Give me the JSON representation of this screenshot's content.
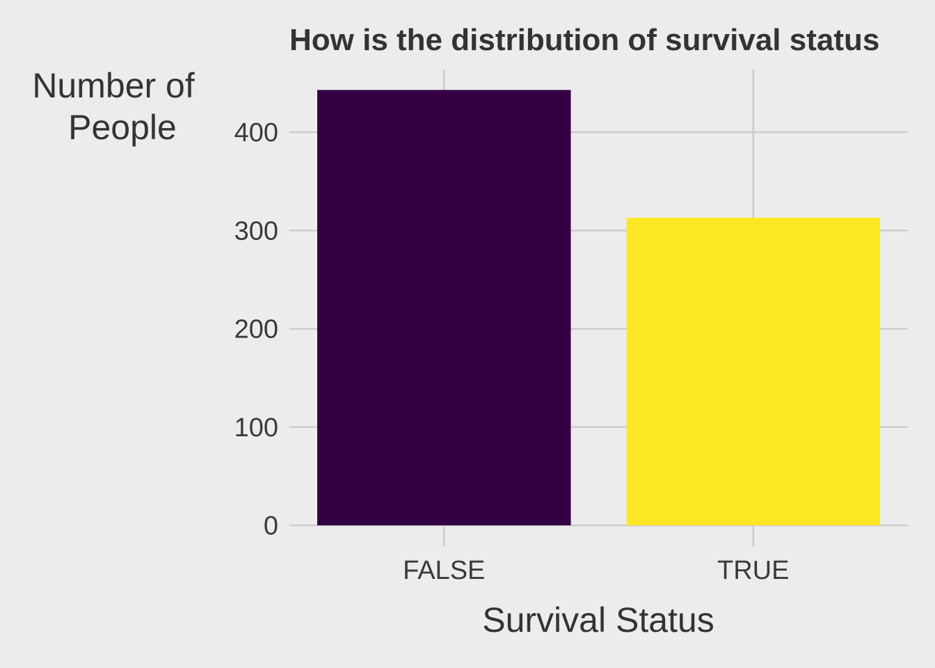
{
  "chart_data": {
    "type": "bar",
    "title": "How is the distribution of survival status",
    "xlabel": "Survival Status",
    "ylabel": [
      "Number of",
      "People"
    ],
    "categories": [
      "FALSE",
      "TRUE"
    ],
    "values": [
      443,
      313
    ],
    "colors": [
      "#340042",
      "#fde725"
    ],
    "ylim": [
      0,
      460
    ],
    "yticks": [
      0,
      100,
      200,
      300,
      400
    ],
    "grid": true,
    "legend": "none",
    "background": "#ececec"
  }
}
